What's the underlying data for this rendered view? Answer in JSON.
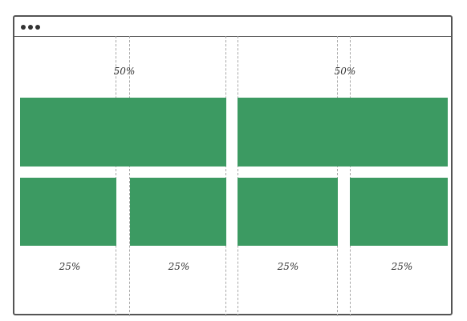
{
  "top_row": {
    "left_label": "50%",
    "right_label": "50%"
  },
  "bottom_row": {
    "labels": [
      "25%",
      "25%",
      "25%",
      "25%"
    ]
  },
  "colors": {
    "block": "#3c9a62",
    "guide": "#a8a8a8",
    "frame": "#555555"
  }
}
